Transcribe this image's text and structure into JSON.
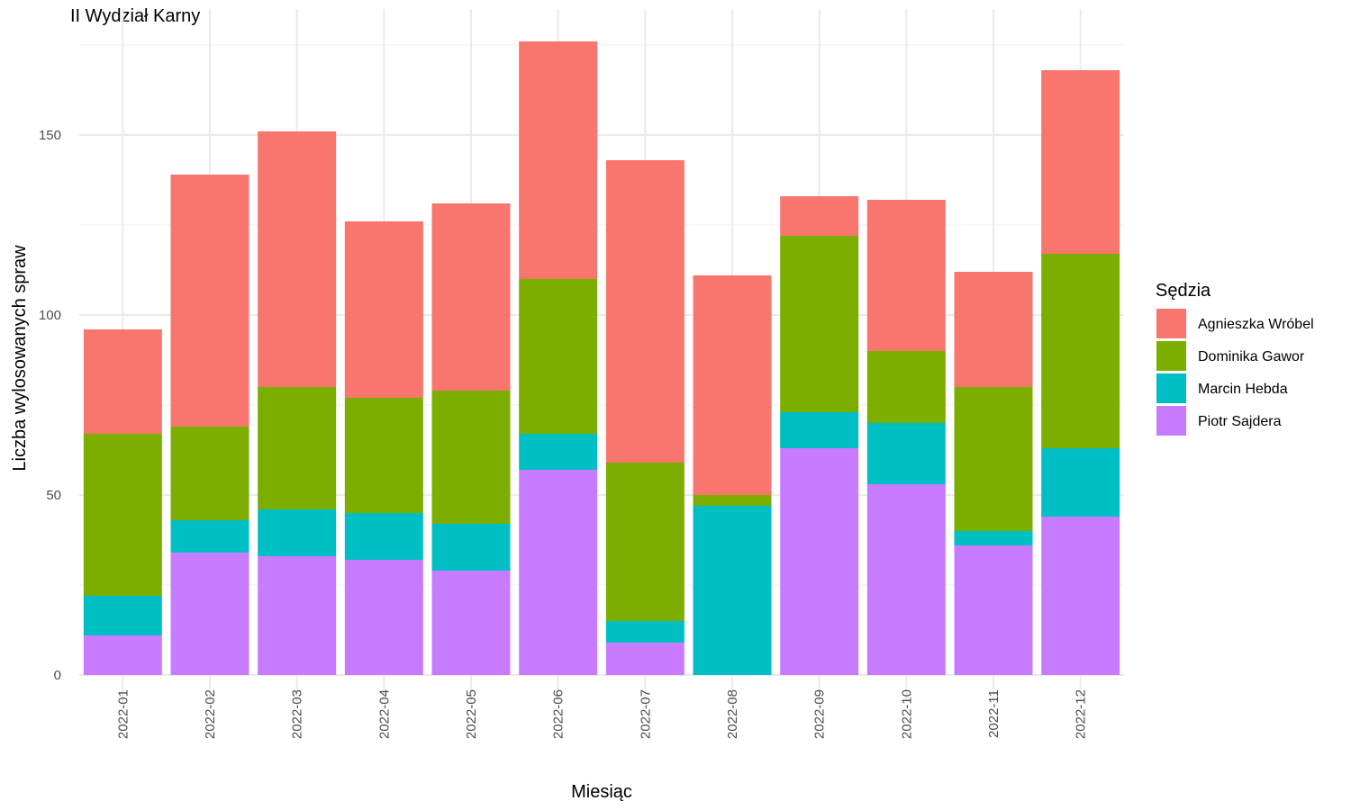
{
  "chart_data": {
    "type": "bar",
    "stacked": true,
    "title": "II Wydział Karny",
    "xlabel": "Miesiąc",
    "ylabel": "Liczba wylosowanych spraw",
    "ylim": [
      0,
      175
    ],
    "yticks": [
      0,
      50,
      100,
      150
    ],
    "grid": true,
    "legend": {
      "title": "Sędzia",
      "position": "right"
    },
    "categories": [
      "2022-01",
      "2022-02",
      "2022-03",
      "2022-04",
      "2022-05",
      "2022-06",
      "2022-07",
      "2022-08",
      "2022-09",
      "2022-10",
      "2022-11",
      "2022-12"
    ],
    "series": [
      {
        "name": "Piotr Sajdera",
        "color": "#C77CFF",
        "values": [
          11,
          34,
          33,
          32,
          29,
          57,
          9,
          0,
          63,
          53,
          36,
          44
        ]
      },
      {
        "name": "Marcin Hebda",
        "color": "#00BFC4",
        "values": [
          11,
          9,
          13,
          13,
          13,
          10,
          6,
          47,
          10,
          17,
          4,
          19
        ]
      },
      {
        "name": "Dominika Gawor",
        "color": "#7CAE00",
        "values": [
          45,
          26,
          34,
          32,
          37,
          43,
          44,
          3,
          49,
          20,
          40,
          54
        ]
      },
      {
        "name": "Agnieszka Wróbel",
        "color": "#F8766D",
        "values": [
          29,
          70,
          71,
          49,
          52,
          66,
          84,
          61,
          11,
          42,
          32,
          51
        ]
      }
    ],
    "legend_order": [
      "Agnieszka Wróbel",
      "Dominika Gawor",
      "Marcin Hebda",
      "Piotr Sajdera"
    ]
  }
}
